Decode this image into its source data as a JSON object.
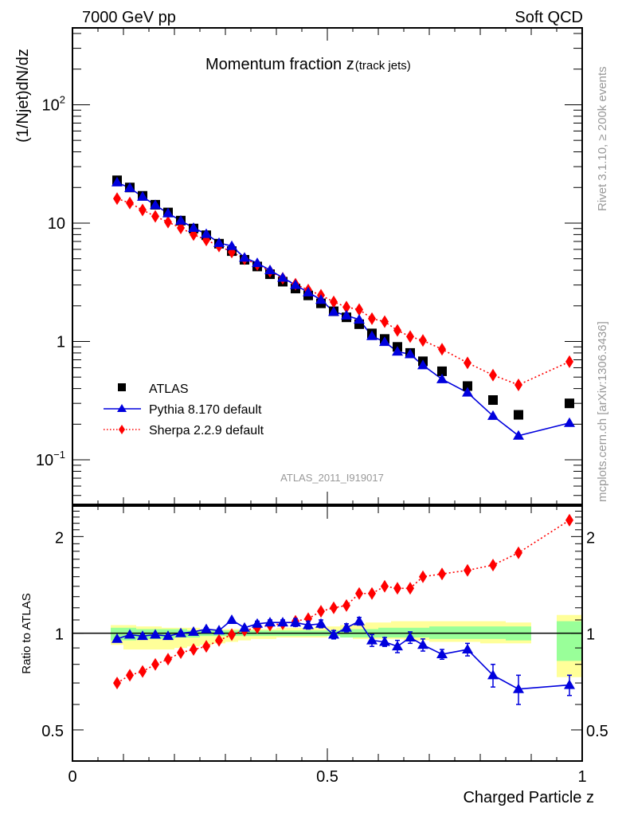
{
  "chart_data": [
    {
      "type": "scatter",
      "panel": "main",
      "title": "Momentum fraction z",
      "title_suffix": "(track jets)",
      "xlabel": "Charged Particle z",
      "ylabel": "(1/Njet)dN/dz",
      "yscale": "log",
      "xlim": [
        0,
        1
      ],
      "ylim": [
        0.042,
        446
      ],
      "x": [
        0.0875,
        0.1125,
        0.1375,
        0.1625,
        0.1875,
        0.2125,
        0.2375,
        0.2625,
        0.2875,
        0.3125,
        0.3375,
        0.3625,
        0.3875,
        0.4125,
        0.4375,
        0.4625,
        0.4875,
        0.5125,
        0.5375,
        0.5625,
        0.5875,
        0.6125,
        0.6375,
        0.6625,
        0.6875,
        0.725,
        0.775,
        0.825,
        0.875,
        0.975
      ],
      "series": [
        {
          "name": "ATLAS",
          "style": "data",
          "color": "#000000",
          "values": [
            23,
            20,
            17,
            14.3,
            12.3,
            10.5,
            9.0,
            7.9,
            6.7,
            5.8,
            4.9,
            4.3,
            3.7,
            3.2,
            2.8,
            2.45,
            2.1,
            1.8,
            1.6,
            1.4,
            1.17,
            1.05,
            0.9,
            0.8,
            0.68,
            0.56,
            0.42,
            0.32,
            0.24,
            0.3
          ]
        },
        {
          "name": "Pythia 8.170 default",
          "style": "solid",
          "color": "#0000dd",
          "values": [
            22.1,
            19.8,
            16.7,
            14.2,
            12.1,
            10.5,
            9.1,
            8.1,
            6.8,
            6.4,
            5.1,
            4.6,
            4.0,
            3.46,
            3.0,
            2.6,
            2.25,
            1.78,
            1.66,
            1.53,
            1.11,
            0.99,
            0.82,
            0.78,
            0.63,
            0.48,
            0.37,
            0.235,
            0.16,
            0.205
          ]
        },
        {
          "name": "Sherpa 2.2.9 default",
          "style": "dotted",
          "color": "#ff0000",
          "values": [
            16.1,
            14.8,
            12.9,
            11.4,
            10.2,
            9.1,
            8.0,
            7.2,
            6.4,
            5.7,
            5.0,
            4.47,
            3.92,
            3.42,
            3.05,
            2.72,
            2.46,
            2.16,
            1.95,
            1.86,
            1.56,
            1.47,
            1.24,
            1.1,
            1.02,
            0.86,
            0.66,
            0.52,
            0.43,
            0.675
          ]
        }
      ],
      "legend": [
        "ATLAS",
        "Pythia 8.170 default",
        "Sherpa 2.2.9 default"
      ],
      "legend_placement": "bottom-left",
      "yticks": [
        "10^-1",
        "1",
        "10",
        "10^2"
      ]
    },
    {
      "type": "scatter",
      "panel": "ratio",
      "ylabel": "Ratio to ATLAS",
      "xlabel": "Charged Particle z",
      "yscale": "log",
      "xlim": [
        0,
        1
      ],
      "ylim": [
        0.4,
        2.49
      ],
      "yticks": [
        "0.5",
        "1",
        "2"
      ],
      "xticks": [
        "0",
        "0.5",
        "1"
      ],
      "x": [
        0.0875,
        0.1125,
        0.1375,
        0.1625,
        0.1875,
        0.2125,
        0.2375,
        0.2625,
        0.2875,
        0.3125,
        0.3375,
        0.3625,
        0.3875,
        0.4125,
        0.4375,
        0.4625,
        0.4875,
        0.5125,
        0.5375,
        0.5625,
        0.5875,
        0.6125,
        0.6375,
        0.6625,
        0.6875,
        0.725,
        0.775,
        0.825,
        0.875,
        0.975
      ],
      "series": [
        {
          "name": "Pythia 8.170 default",
          "color": "#0000dd",
          "values": [
            0.96,
            0.99,
            0.98,
            0.99,
            0.98,
            1.0,
            1.01,
            1.03,
            1.02,
            1.1,
            1.04,
            1.07,
            1.08,
            1.08,
            1.08,
            1.06,
            1.07,
            0.99,
            1.04,
            1.09,
            0.95,
            0.94,
            0.91,
            0.97,
            0.92,
            0.86,
            0.89,
            0.74,
            0.67,
            0.69
          ],
          "errors": [
            0.01,
            0.01,
            0.01,
            0.01,
            0.01,
            0.01,
            0.01,
            0.01,
            0.01,
            0.01,
            0.01,
            0.02,
            0.02,
            0.02,
            0.03,
            0.03,
            0.03,
            0.03,
            0.03,
            0.03,
            0.04,
            0.03,
            0.04,
            0.04,
            0.04,
            0.03,
            0.04,
            0.06,
            0.07,
            0.05
          ]
        },
        {
          "name": "Sherpa 2.2.9 default",
          "color": "#ff0000",
          "values": [
            0.7,
            0.74,
            0.76,
            0.8,
            0.83,
            0.87,
            0.89,
            0.91,
            0.95,
            0.99,
            1.02,
            1.04,
            1.06,
            1.07,
            1.09,
            1.11,
            1.17,
            1.2,
            1.22,
            1.33,
            1.33,
            1.4,
            1.38,
            1.38,
            1.5,
            1.53,
            1.57,
            1.63,
            1.78,
            2.25
          ]
        }
      ],
      "bands": {
        "x_edges": [
          0.075,
          0.1,
          0.125,
          0.15,
          0.175,
          0.2,
          0.225,
          0.25,
          0.275,
          0.3,
          0.325,
          0.35,
          0.375,
          0.4,
          0.425,
          0.45,
          0.475,
          0.5,
          0.525,
          0.55,
          0.575,
          0.6,
          0.625,
          0.65,
          0.675,
          0.7,
          0.75,
          0.8,
          0.85,
          0.9,
          0.95,
          1.0
        ],
        "stat_lo": [
          0.95,
          0.95,
          0.96,
          0.96,
          0.96,
          0.97,
          0.97,
          0.98,
          0.98,
          0.98,
          0.98,
          0.98,
          0.98,
          0.98,
          0.98,
          0.98,
          0.98,
          0.98,
          0.97,
          0.97,
          0.97,
          0.97,
          0.97,
          0.97,
          0.97,
          0.96,
          0.96,
          0.96,
          0.95,
          null,
          0.82
        ],
        "stat_hi": [
          1.04,
          1.04,
          1.03,
          1.03,
          1.03,
          1.03,
          1.02,
          1.02,
          1.02,
          1.02,
          1.02,
          1.02,
          1.02,
          1.02,
          1.02,
          1.02,
          1.02,
          1.02,
          1.03,
          1.03,
          1.03,
          1.04,
          1.04,
          1.04,
          1.04,
          1.05,
          1.05,
          1.05,
          1.05,
          null,
          1.09
        ],
        "syst_lo": [
          0.92,
          0.89,
          0.89,
          0.89,
          0.89,
          0.9,
          0.91,
          0.92,
          0.93,
          0.94,
          0.95,
          0.96,
          0.96,
          0.97,
          0.97,
          0.97,
          0.97,
          0.98,
          0.97,
          0.96,
          0.96,
          0.96,
          0.96,
          0.95,
          0.95,
          0.94,
          0.94,
          0.93,
          0.93,
          null,
          0.73
        ],
        "syst_hi": [
          1.06,
          1.06,
          1.05,
          1.05,
          1.04,
          1.04,
          1.04,
          1.03,
          1.03,
          1.03,
          1.03,
          1.03,
          1.03,
          1.04,
          1.04,
          1.04,
          1.05,
          1.05,
          1.06,
          1.07,
          1.08,
          1.08,
          1.09,
          1.09,
          1.09,
          1.09,
          1.09,
          1.09,
          1.08,
          null,
          1.14
        ],
        "stat_color": "#99ff99",
        "syst_color": "#ffff99"
      }
    }
  ],
  "header": {
    "left": "7000 GeV pp",
    "right": "Soft QCD"
  },
  "side_text": {
    "rivet": "Rivet 3.1.10, ≥ 200k events",
    "mcplots": "mcplots.cern.ch [arXiv:1306.3436]"
  },
  "analysis_id": "ATLAS_2011_I919017"
}
